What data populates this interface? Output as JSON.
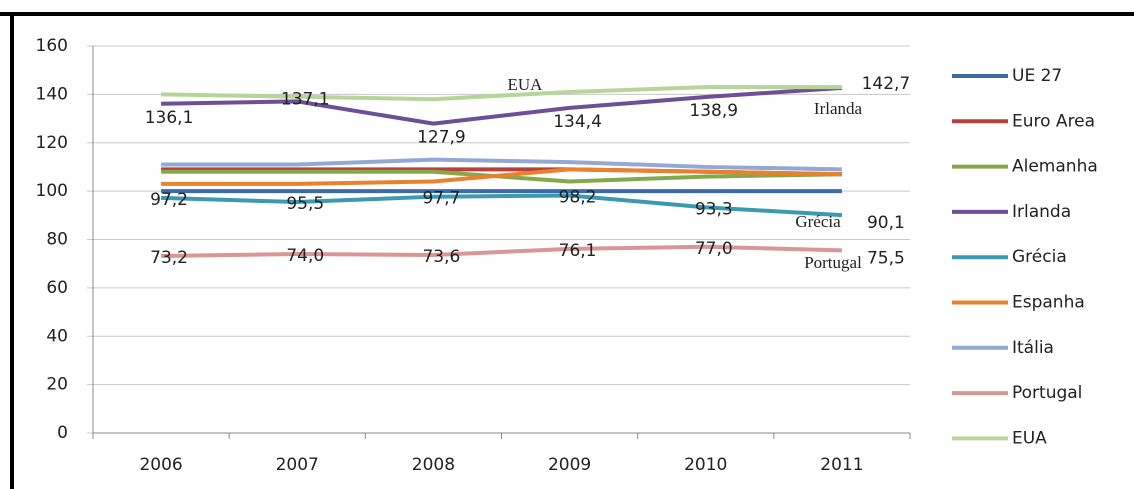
{
  "chart_data": {
    "type": "line",
    "categories": [
      "2006",
      "2007",
      "2008",
      "2009",
      "2010",
      "2011"
    ],
    "ylim": [
      0,
      160
    ],
    "yticks": [
      0,
      20,
      40,
      60,
      80,
      100,
      120,
      140,
      160
    ],
    "grid": true,
    "legend": "right",
    "series": [
      {
        "name": "UE 27",
        "color": "#3d6aa8",
        "values": [
          100,
          100,
          100,
          100,
          100,
          100
        ]
      },
      {
        "name": "Euro Area",
        "color": "#b8403a",
        "values": [
          109,
          109,
          109,
          109,
          108,
          107
        ]
      },
      {
        "name": "Alemanha",
        "color": "#86a84a",
        "values": [
          108,
          108,
          108,
          104,
          106,
          107
        ]
      },
      {
        "name": "Irlanda",
        "color": "#6e4e96",
        "values": [
          136.1,
          137.1,
          127.9,
          134.4,
          138.9,
          142.7
        ],
        "value_labels": [
          "136,1",
          "137,1",
          "127,9",
          "134,4",
          "138,9",
          "142,7"
        ]
      },
      {
        "name": "Grécia",
        "color": "#3a9ab0",
        "values": [
          97.2,
          95.5,
          97.7,
          98.2,
          93.3,
          90.1
        ],
        "value_labels": [
          "97,2",
          "95,5",
          "97,7",
          "98,2",
          "93,3",
          "90,1"
        ]
      },
      {
        "name": "Espanha",
        "color": "#e8822e",
        "values": [
          103,
          103,
          104,
          109,
          108,
          107
        ]
      },
      {
        "name": "Itália",
        "color": "#93a9d4",
        "values": [
          111,
          111,
          113,
          112,
          110,
          109
        ]
      },
      {
        "name": "Portugal",
        "color": "#d99694",
        "values": [
          73.2,
          74.0,
          73.6,
          76.1,
          77.0,
          75.5
        ],
        "value_labels": [
          "73,2",
          "74,0",
          "73,6",
          "76,1",
          "77,0",
          "75,5"
        ]
      },
      {
        "name": "EUA",
        "color": "#b7d59b",
        "values": [
          140,
          139,
          138,
          141,
          143,
          143
        ]
      }
    ],
    "annotations": [
      "EUA",
      "Irlanda",
      "Grécia",
      "Portugal"
    ]
  }
}
